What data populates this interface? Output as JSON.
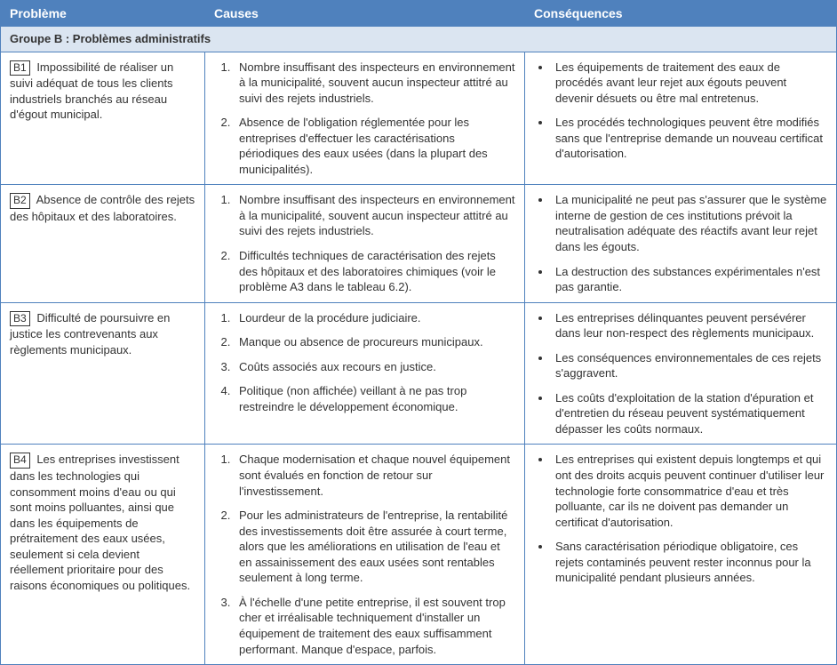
{
  "header": {
    "col1": "Problème",
    "col2": "Causes",
    "col3": "Conséquences"
  },
  "group_label": "Groupe B : Problèmes administratifs",
  "rows": [
    {
      "code": "B1",
      "probleme": "Impossibilité de réaliser un suivi adéquat de tous les clients industriels branchés au réseau d'égout municipal.",
      "causes": [
        "Nombre insuffisant des inspecteurs en environnement à la municipalité, souvent aucun inspecteur attitré au suivi des rejets industriels.",
        "Absence de l'obligation réglementée pour les entreprises d'effectuer les caractérisations périodiques des eaux usées (dans la plupart des municipalités)."
      ],
      "consequences": [
        "Les équipements de traitement des eaux de procédés avant leur rejet aux égouts peuvent devenir désuets ou être mal entretenus.",
        "Les procédés technologiques peuvent être modifiés sans que l'entreprise demande un nouveau certificat d'autorisation."
      ]
    },
    {
      "code": "B2",
      "probleme": "Absence de contrôle des rejets des hôpitaux et des laboratoires.",
      "causes": [
        "Nombre insuffisant des inspecteurs en environnement à la municipalité, souvent aucun inspecteur attitré au suivi des rejets industriels.",
        "Difficultés techniques de caractérisation des rejets des hôpitaux et des laboratoires chimiques (voir le problème A3 dans le tableau 6.2)."
      ],
      "consequences": [
        "La municipalité ne peut pas s'assurer que le système interne de gestion de ces institutions prévoit la neutralisation adéquate des réactifs avant leur rejet dans les égouts.",
        "La destruction des substances expérimentales n'est pas garantie."
      ]
    },
    {
      "code": "B3",
      "probleme": "Difficulté de poursuivre en justice les contrevenants aux règlements municipaux.",
      "causes": [
        "Lourdeur de la procédure judiciaire.",
        "Manque ou absence de procureurs municipaux.",
        "Coûts associés aux recours en justice.",
        "Politique (non affichée) veillant à ne pas trop restreindre le développement économique."
      ],
      "consequences": [
        "Les entreprises délinquantes peuvent persévérer dans leur non-respect des règlements municipaux.",
        "Les conséquences environnementales de ces rejets s'aggravent.",
        "Les coûts d'exploitation de la station d'épuration et d'entretien du réseau peuvent systématiquement dépasser les coûts normaux."
      ]
    },
    {
      "code": "B4",
      "probleme": "Les entreprises investissent dans les technologies qui consomment moins d'eau ou qui sont moins polluantes, ainsi que dans les équipements de prétraitement des eaux usées, seulement si cela devient réellement prioritaire pour des raisons économiques ou politiques.",
      "causes": [
        "Chaque modernisation et chaque nouvel équipement sont évalués en fonction de retour sur l'investissement.",
        "Pour les administrateurs de l'entreprise, la rentabilité des investissements doit être assurée à court terme, alors que les améliorations en utilisation de l'eau et en assainissement des eaux usées sont rentables seulement à long terme.",
        "À l'échelle d'une petite entreprise, il est souvent trop cher et irréalisable techniquement d'installer un équipement de traitement des eaux suffisamment performant. Manque d'espace, parfois."
      ],
      "consequences": [
        "Les entreprises qui existent depuis longtemps et qui ont des droits acquis peuvent continuer d'utiliser leur technologie forte consommatrice d'eau et très polluante, car ils ne doivent pas demander un certificat d'autorisation.",
        "Sans caractérisation périodique obligatoire, ces rejets contaminés peuvent rester inconnus pour la municipalité pendant plusieurs années."
      ]
    }
  ]
}
